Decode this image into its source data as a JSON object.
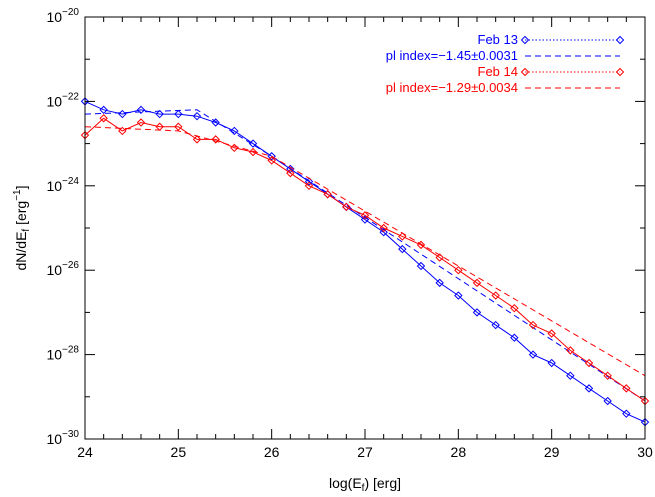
{
  "chart_data": {
    "type": "line",
    "xlabel": "log(E_f) [erg]",
    "ylabel": "dN/dE_f [erg^-1]",
    "xlim": [
      24,
      30
    ],
    "ylim_log10": [
      -30,
      -20
    ],
    "y_scale": "log",
    "grid": false,
    "legend_placement": "top-right",
    "x_ticks": [
      "24",
      "25",
      "26",
      "27",
      "28",
      "29",
      "30"
    ],
    "y_ticks": [
      {
        "base": "10",
        "exp": "−20",
        "log10": -20
      },
      {
        "base": "10",
        "exp": "−22",
        "log10": -22
      },
      {
        "base": "10",
        "exp": "−24",
        "log10": -24
      },
      {
        "base": "10",
        "exp": "−26",
        "log10": -26
      },
      {
        "base": "10",
        "exp": "−28",
        "log10": -28
      },
      {
        "base": "10",
        "exp": "−30",
        "log10": -30
      }
    ],
    "colors": {
      "feb13": "#0000ff",
      "feb14": "#ff0000"
    },
    "series": [
      {
        "name": "Feb 13",
        "color": "#0000ff",
        "style": "dotted-diamond",
        "x": [
          24.0,
          24.2,
          24.4,
          24.6,
          24.8,
          25.0,
          25.2,
          25.4,
          25.6,
          25.8,
          26.0,
          26.2,
          26.4,
          26.6,
          26.8,
          27.0,
          27.2,
          27.4,
          27.6,
          27.8,
          28.0,
          28.2,
          28.4,
          28.6,
          28.8,
          29.0,
          29.2,
          29.4,
          29.6,
          29.8,
          30.0
        ],
        "log10_y": [
          -22.0,
          -22.2,
          -22.3,
          -22.2,
          -22.3,
          -22.3,
          -22.35,
          -22.5,
          -22.7,
          -23.0,
          -23.3,
          -23.6,
          -23.9,
          -24.2,
          -24.5,
          -24.8,
          -25.1,
          -25.5,
          -25.9,
          -26.3,
          -26.6,
          -27.0,
          -27.3,
          -27.6,
          -28.0,
          -28.2,
          -28.5,
          -28.8,
          -29.1,
          -29.4,
          -29.6
        ]
      },
      {
        "name": "pl index=−1.45±0.0031",
        "color": "#0000ff",
        "style": "dashed",
        "x": [
          24.0,
          25.2,
          26.0,
          30.0
        ],
        "log10_y": [
          -22.3,
          -22.2,
          -23.3,
          -29.1
        ]
      },
      {
        "name": "Feb 14",
        "color": "#ff0000",
        "style": "dotted-diamond",
        "x": [
          24.0,
          24.2,
          24.4,
          24.6,
          24.8,
          25.0,
          25.2,
          25.4,
          25.6,
          25.8,
          26.0,
          26.2,
          26.4,
          26.6,
          26.8,
          27.0,
          27.2,
          27.4,
          27.6,
          27.8,
          28.0,
          28.2,
          28.4,
          28.6,
          28.8,
          29.0,
          29.2,
          29.4,
          29.6,
          29.8,
          30.0
        ],
        "log10_y": [
          -22.8,
          -22.4,
          -22.7,
          -22.5,
          -22.6,
          -22.6,
          -22.9,
          -22.9,
          -23.1,
          -23.2,
          -23.4,
          -23.7,
          -24.0,
          -24.2,
          -24.5,
          -24.7,
          -25.0,
          -25.2,
          -25.4,
          -25.7,
          -26.0,
          -26.3,
          -26.6,
          -26.9,
          -27.3,
          -27.5,
          -27.9,
          -28.2,
          -28.5,
          -28.8,
          -29.1
        ]
      },
      {
        "name": "pl index=−1.29±0.0034",
        "color": "#ff0000",
        "style": "dashed",
        "x": [
          24.0,
          25.0,
          26.0,
          30.0
        ],
        "log10_y": [
          -22.6,
          -22.7,
          -23.3,
          -28.5
        ]
      }
    ]
  }
}
